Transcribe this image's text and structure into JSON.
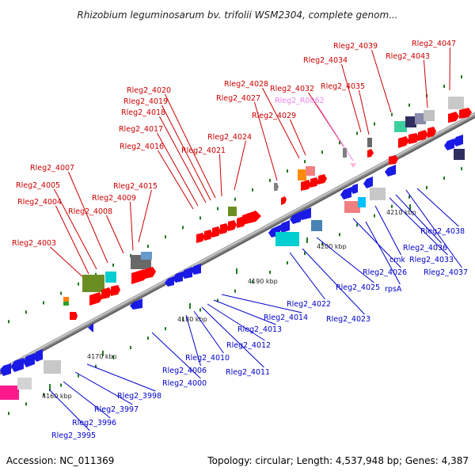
{
  "title": "Rhizobium leguminosarum bv. trifolii WSM2304, complete genom...",
  "footer": {
    "accession": "Accession: NC_011369",
    "summary": "Topology: circular; Length: 4,537,948 bp; Genes: 4,387"
  },
  "colors": {
    "forward_cds": "#ff0000",
    "reverse_cds": "#1a1ae6",
    "forward_label": "#cc0000",
    "reverse_label": "#0000cc",
    "rna_label": "#ee82ee",
    "backbone": "#8c8c8c",
    "gc_tick": "#1f7a1f"
  },
  "scale_ticks": [
    "4160 kbp",
    "4170 kbp",
    "4180 kbp",
    "4190 kbp",
    "4200 kbp",
    "4210 kbp"
  ],
  "forward_labels": [
    "Rleg2_4003",
    "Rleg2_4004",
    "Rleg2_4005",
    "Rleg2_4007",
    "Rleg2_4008",
    "Rleg2_4009",
    "Rleg2_4015",
    "Rleg2_4016",
    "Rleg2_4017",
    "Rleg2_4018",
    "Rleg2_4019",
    "Rleg2_4020",
    "Rleg2_4021",
    "Rleg2_4024",
    "Rleg2_4027",
    "Rleg2_4028",
    "Rleg2_4029",
    "Rleg2_4032",
    "Rleg2_4034",
    "Rleg2_4035",
    "Rleg2_4039",
    "Rleg2_4043",
    "Rleg2_4047"
  ],
  "rna_labels": [
    "Rleg2_R0062"
  ],
  "reverse_labels": [
    "Rleg2_3995",
    "Rleg2_3996",
    "Rleg2_3997",
    "Rleg2_3998",
    "Rleg2_4000",
    "Rleg2_4006",
    "Rleg2_4010",
    "Rleg2_4011",
    "Rleg2_4012",
    "Rleg2_4013",
    "Rleg2_4014",
    "Rleg2_4022",
    "Rleg2_4023",
    "Rleg2_4025",
    "Rleg2_4026",
    "rpsA",
    "cmk",
    "Rleg2_4033",
    "Rleg2_4036",
    "Rleg2_4037",
    "Rleg2_4038"
  ]
}
